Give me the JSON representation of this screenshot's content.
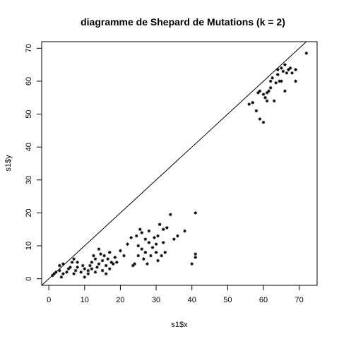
{
  "chart_data": {
    "type": "scatter",
    "title": "diagramme de Shepard de Mutations (k = 2)",
    "xlabel": "s1$x",
    "ylabel": "s1$y",
    "xlim": [
      -2,
      75
    ],
    "ylim": [
      -2,
      72
    ],
    "xticks": [
      0,
      10,
      20,
      30,
      40,
      50,
      60,
      70
    ],
    "yticks": [
      0,
      10,
      20,
      30,
      40,
      50,
      60,
      70
    ],
    "grid": false,
    "reference_line": {
      "slope": 1,
      "intercept": 0
    },
    "marker": "asterisk",
    "points": [
      [
        1,
        1
      ],
      [
        1.5,
        1.5
      ],
      [
        2,
        2
      ],
      [
        3,
        2.5
      ],
      [
        3,
        4
      ],
      [
        4,
        4.5
      ],
      [
        3.5,
        0.5
      ],
      [
        4,
        1.5
      ],
      [
        5,
        2
      ],
      [
        5.5,
        3
      ],
      [
        6,
        3.5
      ],
      [
        6.5,
        5
      ],
      [
        7,
        6
      ],
      [
        7.5,
        2.5
      ],
      [
        8,
        5
      ],
      [
        8,
        3.5
      ],
      [
        7,
        1.5
      ],
      [
        9,
        2
      ],
      [
        9.5,
        4
      ],
      [
        10,
        3
      ],
      [
        10,
        0.5
      ],
      [
        11,
        1.5
      ],
      [
        11,
        2.5
      ],
      [
        11.5,
        4
      ],
      [
        12,
        3
      ],
      [
        12,
        5
      ],
      [
        12.5,
        7
      ],
      [
        13,
        6
      ],
      [
        13,
        2
      ],
      [
        13.5,
        3.5
      ],
      [
        14,
        4.5
      ],
      [
        14,
        9
      ],
      [
        14.5,
        7.5
      ],
      [
        15,
        2.5
      ],
      [
        15,
        5.5
      ],
      [
        15.5,
        7
      ],
      [
        16,
        4
      ],
      [
        16,
        1.5
      ],
      [
        16.5,
        6
      ],
      [
        17,
        8
      ],
      [
        17,
        3
      ],
      [
        17.5,
        5
      ],
      [
        18,
        4.5
      ],
      [
        18.5,
        6.5
      ],
      [
        19,
        5
      ],
      [
        20,
        8.5
      ],
      [
        21,
        7
      ],
      [
        22,
        10.5
      ],
      [
        23,
        12.5
      ],
      [
        23.5,
        4
      ],
      [
        24,
        4.5
      ],
      [
        24.5,
        13
      ],
      [
        25,
        7
      ],
      [
        25,
        10
      ],
      [
        25.5,
        15
      ],
      [
        26,
        9
      ],
      [
        26,
        14
      ],
      [
        26.5,
        6
      ],
      [
        27,
        8
      ],
      [
        27,
        12
      ],
      [
        27.5,
        4.5
      ],
      [
        28,
        11
      ],
      [
        28,
        14.5
      ],
      [
        28.5,
        7
      ],
      [
        29,
        9.5
      ],
      [
        29.5,
        12.5
      ],
      [
        30,
        8
      ],
      [
        30,
        10.5
      ],
      [
        30.5,
        5.5
      ],
      [
        30.5,
        13
      ],
      [
        31,
        16.5
      ],
      [
        31.5,
        7
      ],
      [
        32,
        11
      ],
      [
        32,
        15
      ],
      [
        32.5,
        8
      ],
      [
        33,
        15.5
      ],
      [
        34,
        19.5
      ],
      [
        35,
        12
      ],
      [
        36,
        13
      ],
      [
        38,
        14.5
      ],
      [
        40,
        4.5
      ],
      [
        41,
        20
      ],
      [
        41,
        6.5
      ],
      [
        41,
        7.5
      ],
      [
        56,
        53
      ],
      [
        57,
        53.5
      ],
      [
        58,
        51
      ],
      [
        58.5,
        56.5
      ],
      [
        59,
        57
      ],
      [
        59,
        48.5
      ],
      [
        60,
        47.5
      ],
      [
        60,
        56
      ],
      [
        60.5,
        55
      ],
      [
        61,
        54
      ],
      [
        61,
        56.5
      ],
      [
        61.5,
        57
      ],
      [
        62,
        58
      ],
      [
        62,
        60
      ],
      [
        62.5,
        61
      ],
      [
        63,
        54
      ],
      [
        63.5,
        59.5
      ],
      [
        64,
        62
      ],
      [
        64,
        63.5
      ],
      [
        64.5,
        60
      ],
      [
        65,
        60
      ],
      [
        65,
        64
      ],
      [
        65.5,
        63
      ],
      [
        66,
        57
      ],
      [
        66,
        65
      ],
      [
        66.5,
        62.5
      ],
      [
        67,
        63.5
      ],
      [
        67.5,
        64
      ],
      [
        68,
        62.5
      ],
      [
        69,
        63.5
      ],
      [
        69,
        60
      ],
      [
        72,
        68.5
      ]
    ]
  }
}
